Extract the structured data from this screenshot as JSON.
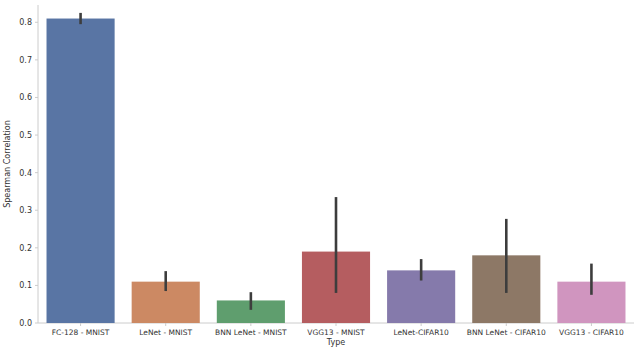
{
  "chart_data": {
    "type": "bar",
    "x_label": "Type",
    "y_label": "Spearman Correlation",
    "categories": [
      "FC-128 - MNIST",
      "LeNet - MNIST",
      "BNN LeNet - MNIST",
      "VGG13 - MNIST",
      "LeNet-CIFAR10",
      "BNN LeNet - CIFAR10",
      "VGG13 - CIFAR10"
    ],
    "values": [
      0.81,
      0.11,
      0.06,
      0.19,
      0.14,
      0.18,
      0.11
    ],
    "ci_low": [
      0.795,
      0.085,
      0.035,
      0.08,
      0.113,
      0.08,
      0.075
    ],
    "ci_high": [
      0.825,
      0.138,
      0.082,
      0.335,
      0.17,
      0.277,
      0.158
    ],
    "colors": [
      "#5975a4",
      "#cc8963",
      "#5f9e6e",
      "#b55d60",
      "#857aab",
      "#8d7866",
      "#d095bf"
    ],
    "ylim": [
      0,
      0.846
    ],
    "yticks": [
      {
        "value": 0,
        "label": "0.0"
      },
      0.1,
      0.2,
      0.3,
      0.4,
      0.5,
      0.6,
      0.7,
      0.8
    ],
    "grid": false
  }
}
